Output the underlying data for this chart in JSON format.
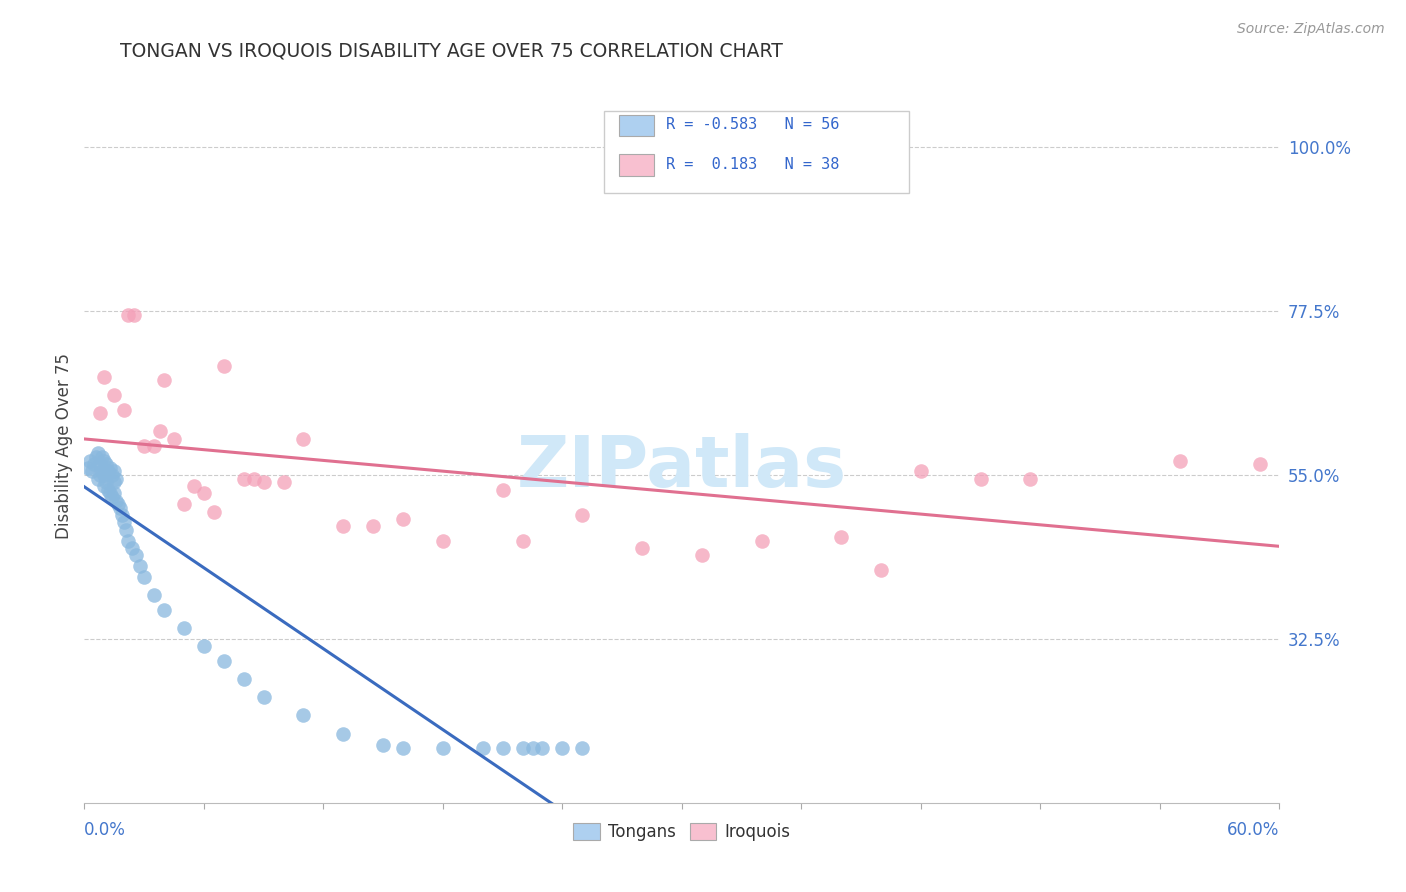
{
  "title": "TONGAN VS IROQUOIS DISABILITY AGE OVER 75 CORRELATION CHART",
  "source": "Source: ZipAtlas.com",
  "ylabel": "Disability Age Over 75",
  "y_ticks": [
    0.325,
    0.55,
    0.775,
    1.0
  ],
  "y_tick_labels": [
    "32.5%",
    "55.0%",
    "77.5%",
    "100.0%"
  ],
  "xmin": 0.0,
  "xmax": 0.6,
  "ymin": 0.1,
  "ymax": 1.08,
  "tongan_color": "#89b8de",
  "iroquois_color": "#f4a0b8",
  "tongan_line_color": "#3a6bbf",
  "iroquois_line_color": "#e07090",
  "tongan_legend_color": "#aed0f0",
  "iroquois_legend_color": "#f8c0d0",
  "watermark_color": "#d0e8f8",
  "tongans_x": [
    0.002,
    0.003,
    0.004,
    0.005,
    0.006,
    0.007,
    0.007,
    0.008,
    0.008,
    0.009,
    0.009,
    0.01,
    0.01,
    0.01,
    0.011,
    0.011,
    0.012,
    0.012,
    0.013,
    0.013,
    0.014,
    0.014,
    0.015,
    0.015,
    0.015,
    0.016,
    0.016,
    0.017,
    0.018,
    0.019,
    0.02,
    0.021,
    0.022,
    0.024,
    0.026,
    0.028,
    0.03,
    0.035,
    0.04,
    0.05,
    0.06,
    0.07,
    0.08,
    0.09,
    0.11,
    0.13,
    0.15,
    0.16,
    0.18,
    0.2,
    0.21,
    0.22,
    0.225,
    0.23,
    0.24,
    0.25
  ],
  "tongans_y": [
    0.56,
    0.57,
    0.555,
    0.565,
    0.575,
    0.58,
    0.545,
    0.565,
    0.55,
    0.575,
    0.555,
    0.57,
    0.55,
    0.535,
    0.565,
    0.54,
    0.555,
    0.53,
    0.56,
    0.525,
    0.55,
    0.52,
    0.555,
    0.525,
    0.54,
    0.545,
    0.515,
    0.51,
    0.505,
    0.495,
    0.485,
    0.475,
    0.46,
    0.45,
    0.44,
    0.425,
    0.41,
    0.385,
    0.365,
    0.34,
    0.315,
    0.295,
    0.27,
    0.245,
    0.22,
    0.195,
    0.18,
    0.175,
    0.175,
    0.175,
    0.175,
    0.175,
    0.175,
    0.175,
    0.175,
    0.175
  ],
  "iroquois_x": [
    0.008,
    0.01,
    0.015,
    0.02,
    0.022,
    0.025,
    0.03,
    0.035,
    0.038,
    0.04,
    0.045,
    0.05,
    0.055,
    0.06,
    0.065,
    0.07,
    0.08,
    0.085,
    0.09,
    0.1,
    0.11,
    0.13,
    0.145,
    0.16,
    0.18,
    0.21,
    0.22,
    0.25,
    0.28,
    0.31,
    0.34,
    0.38,
    0.4,
    0.42,
    0.45,
    0.475,
    0.55,
    0.59
  ],
  "iroquois_y": [
    0.635,
    0.685,
    0.66,
    0.64,
    0.77,
    0.77,
    0.59,
    0.59,
    0.61,
    0.68,
    0.6,
    0.51,
    0.535,
    0.525,
    0.5,
    0.7,
    0.545,
    0.545,
    0.54,
    0.54,
    0.6,
    0.48,
    0.48,
    0.49,
    0.46,
    0.53,
    0.46,
    0.495,
    0.45,
    0.44,
    0.46,
    0.465,
    0.42,
    0.555,
    0.545,
    0.545,
    0.57,
    0.565
  ]
}
